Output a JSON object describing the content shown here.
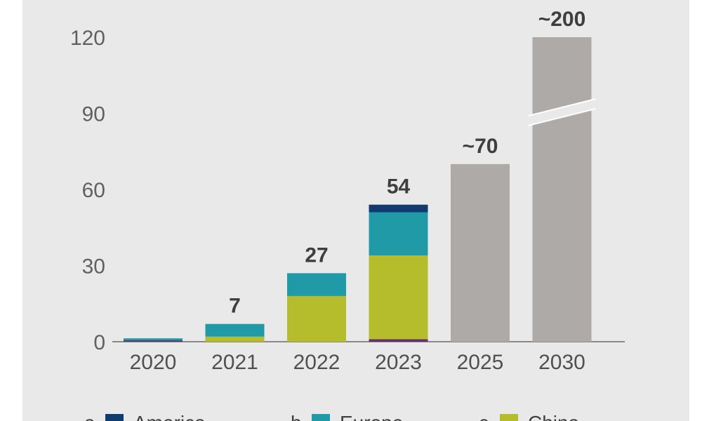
{
  "chart_data": {
    "type": "bar",
    "stacked": true,
    "categories": [
      "2020",
      "2021",
      "2022",
      "2023",
      "2025",
      "2030"
    ],
    "y_ticks": [
      0,
      30,
      60,
      90,
      120
    ],
    "ylim": [
      0,
      120
    ],
    "axis_break": "2030",
    "series": [
      {
        "name": "",
        "color": "#6b2e6b",
        "values": [
          0.5,
          0,
          0,
          1,
          0,
          0
        ]
      },
      {
        "name": "China",
        "color": "#b5bd2c",
        "values": [
          0,
          2,
          18,
          33,
          0,
          0
        ]
      },
      {
        "name": "Europe",
        "color": "#1f9aa6",
        "values": [
          0.5,
          5,
          9,
          17,
          0,
          0
        ]
      },
      {
        "name": "America",
        "color": "#0f3b70",
        "values": [
          0,
          0,
          0,
          3,
          0,
          0
        ]
      },
      {
        "name": "",
        "color": "#aeaaa8",
        "values": [
          0,
          0,
          0,
          0,
          70,
          200
        ]
      }
    ],
    "totals": [
      1,
      7,
      27,
      54,
      70,
      200
    ],
    "data_labels": [
      "",
      "7",
      "27",
      "54",
      "~70",
      "~200"
    ],
    "legend": [
      {
        "marker": "a",
        "name": "America",
        "color": "#0f3b70"
      },
      {
        "marker": "b",
        "name": "Europe",
        "color": "#1f9aa6"
      },
      {
        "marker": "c",
        "name": "China",
        "color": "#b5bd2c"
      }
    ],
    "legend_position": "bottom",
    "grid": false
  }
}
